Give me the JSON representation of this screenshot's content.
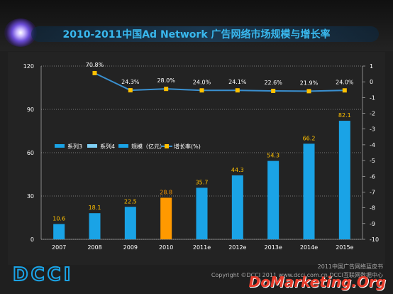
{
  "title": "2010-2011中国Ad Network 广告网络市场规模与增长率",
  "logo_text": "DCCI",
  "footnote_lines": [
    "2011中国广告网络蓝皮书",
    "Copyright ©DCCI 2011 www.dcci.com.cn  DCCI互联网数据中心"
  ],
  "watermark": "DoMarketing.Org",
  "colors": {
    "bar": "#1aa3e6",
    "bar_highlight": "#ff9900",
    "line": "#3a90d0",
    "marker": "#ffc000",
    "series_blue": "#1aa3e6",
    "series_light": "#7fd0f5"
  },
  "chart_data": {
    "type": "bar",
    "categories": [
      "2007",
      "2008",
      "2009",
      "2010",
      "2011e",
      "2012e",
      "2013e",
      "2014e",
      "2015e"
    ],
    "series": [
      {
        "name": "规模（亿元）",
        "type": "bar",
        "axis": "left",
        "values": [
          10.6,
          18.1,
          22.5,
          28.8,
          35.7,
          44.3,
          54.3,
          66.2,
          82.1
        ],
        "highlight_index": 3
      },
      {
        "name": "增长率(%)",
        "type": "line",
        "axis": "right",
        "values": [
          null,
          70.8,
          24.3,
          28.0,
          24.0,
          24.1,
          22.6,
          21.9,
          24.0
        ]
      }
    ],
    "legend": [
      "系列3",
      "系列4",
      "规模（亿元）",
      "增长率(%)"
    ],
    "bar_labels": [
      "10.6",
      "18.1",
      "22.5",
      "28.8",
      "35.7",
      "44.3",
      "54.3",
      "66.2",
      "82.1"
    ],
    "line_labels": [
      "",
      "70.8%",
      "24.3%",
      "28.0%",
      "24.0%",
      "24.1%",
      "22.6%",
      "21.9%",
      "24.0%"
    ],
    "yleft_ticks": [
      "0",
      "30",
      "60",
      "90",
      "120"
    ],
    "yleft_lim": [
      0,
      120
    ],
    "yright_ticks": [
      "1",
      "0",
      "-1",
      "-2",
      "-3",
      "-4",
      "-5",
      "-6",
      "-7",
      "-8",
      "-9",
      "-10"
    ],
    "yright_lim": [
      -10,
      1
    ],
    "line_ylim": [
      -380,
      90
    ],
    "grid": true,
    "legend_position": "center-left"
  }
}
